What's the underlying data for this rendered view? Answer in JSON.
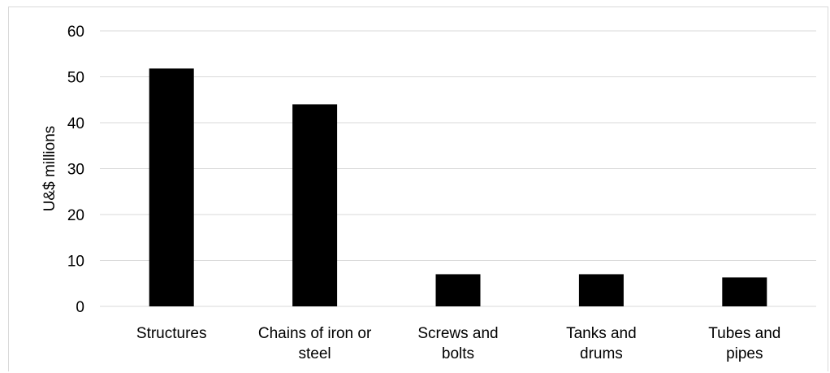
{
  "chart_data": {
    "type": "bar",
    "title": "",
    "xlabel": "",
    "ylabel": "U&$ millions",
    "ylim": [
      0,
      60
    ],
    "yticks": [
      0,
      10,
      20,
      30,
      40,
      50,
      60
    ],
    "grid": true,
    "categories": [
      [
        "Structures"
      ],
      [
        "Chains of iron or",
        "steel"
      ],
      [
        "Screws and",
        "bolts"
      ],
      [
        "Tanks and",
        "drums"
      ],
      [
        "Tubes and",
        "pipes"
      ]
    ],
    "values": [
      51.8,
      44.0,
      7.0,
      7.0,
      6.3
    ],
    "colors": {
      "bar": "#000000",
      "grid": "#d9d9d9",
      "frame": "#d9d9d9"
    }
  }
}
